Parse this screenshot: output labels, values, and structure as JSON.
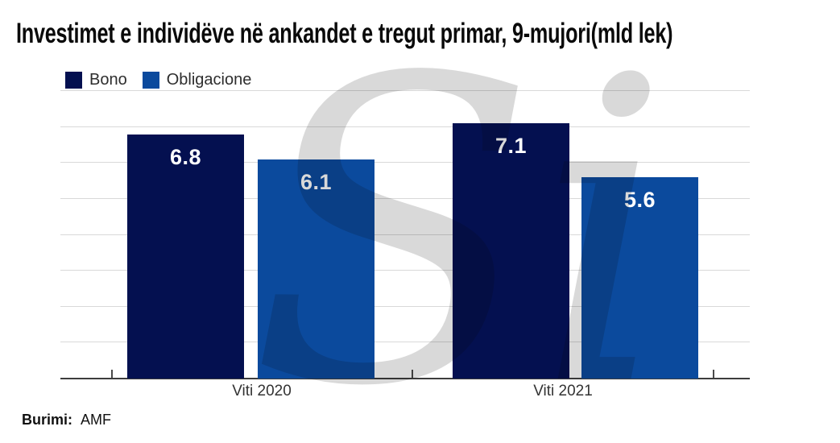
{
  "chart_data": {
    "type": "bar",
    "title": "Investimet e individëve në ankandet e tregut primar, 9-mujori(mld lek)",
    "categories": [
      "Viti 2020",
      "Viti 2021"
    ],
    "series": [
      {
        "name": "Bono",
        "color": "#041050",
        "values": [
          6.8,
          7.1
        ]
      },
      {
        "name": "Obligacione",
        "color": "#0b4a9d",
        "values": [
          6.1,
          5.6
        ]
      }
    ],
    "xlabel": "",
    "ylabel": "",
    "ylim": [
      0,
      8
    ],
    "grid": true,
    "y_axis_labels_shown": false,
    "legend_position": "top-left",
    "value_labels": true
  },
  "legend": {
    "items": [
      {
        "label": "Bono",
        "color": "#041050"
      },
      {
        "label": "Obligacione",
        "color": "#0b4a9d"
      }
    ]
  },
  "watermark": {
    "text": "Si",
    "color": "#d9d9d9"
  },
  "source": {
    "label": "Burimi:",
    "value": "AMF"
  },
  "colors": {
    "background": "#ffffff",
    "gridline": "#d9d9d9",
    "axis_line": "#3d3d3d",
    "title_text": "#0a0a0a",
    "label_text": "#333333",
    "bar_value_text": "#ffffff"
  }
}
